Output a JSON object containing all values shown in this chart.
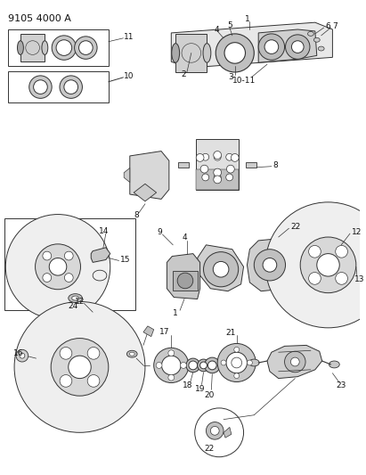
{
  "title": "9105 4000 A",
  "bg_color": "#ffffff",
  "lc": "#333333",
  "tc": "#111111",
  "fig_w": 4.11,
  "fig_h": 5.33,
  "dpi": 100
}
